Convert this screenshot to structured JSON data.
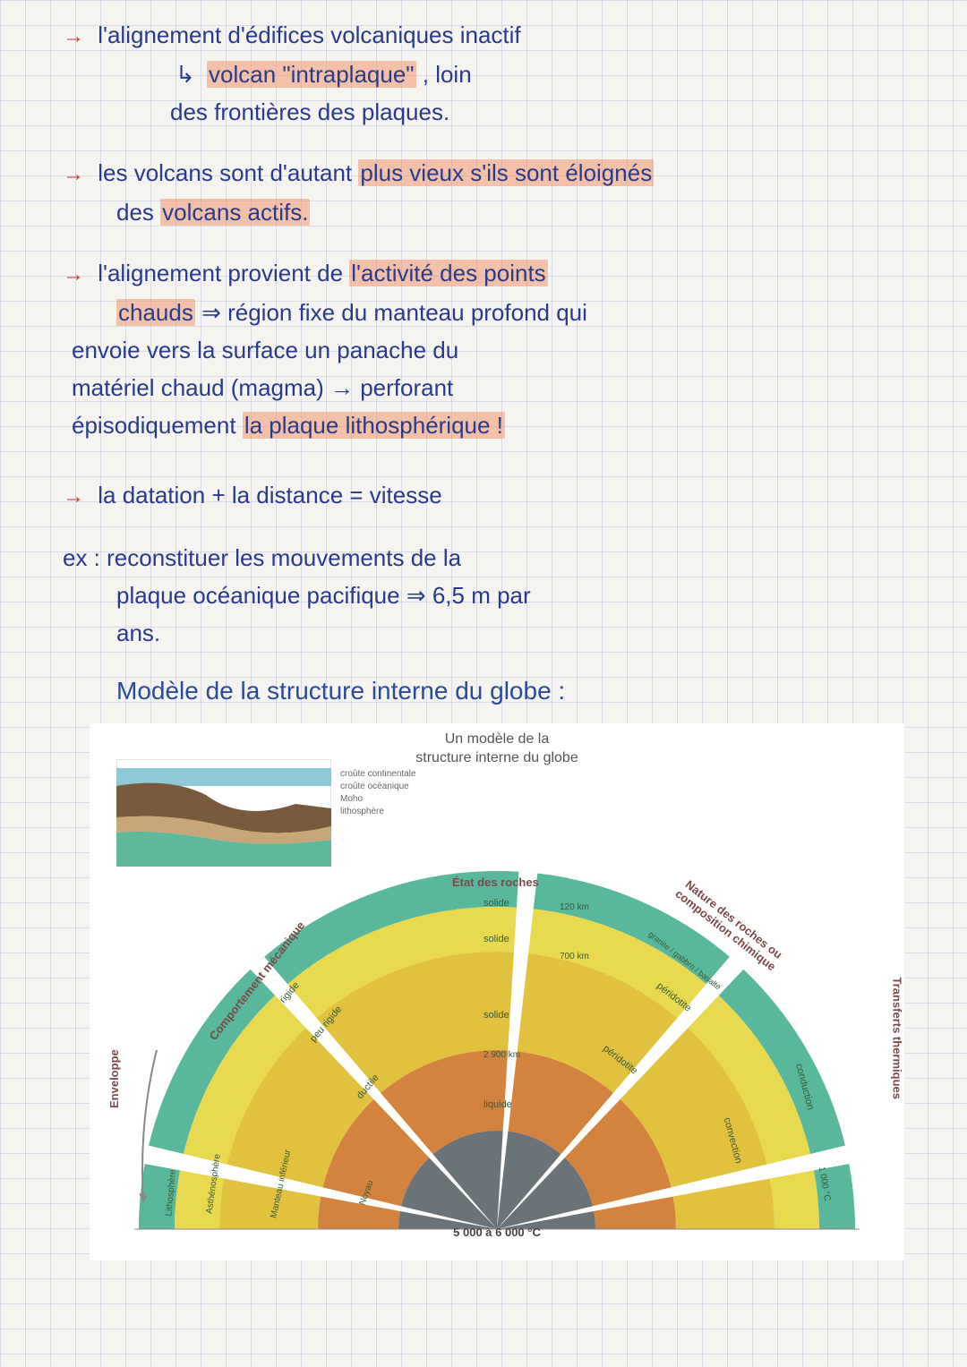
{
  "notes": {
    "line1a": "l'alignement d'édifices volcaniques inactif",
    "line1b_prefix": "↳ ",
    "line1b_hl": "volcan \"intraplaque\"",
    "line1b_suffix": ", loin",
    "line1c": "des frontières des plaques.",
    "line2a": "les volcans sont d'autant ",
    "line2a_hl": "plus vieux s'ils sont éloignés",
    "line2b": "des ",
    "line2b_hl": "volcans actifs.",
    "line3a": "l'alignement provient de ",
    "line3a_hl": "l'activité des points",
    "line3b_hl": "chauds",
    "line3b": " ⇒ région fixe du manteau profond qui",
    "line3c": "envoie vers la surface un panache du",
    "line3d": "matériel chaud (magma) → perforant",
    "line3e": "épisodiquement ",
    "line3e_hl": "la plaque lithosphérique !",
    "line4": "la datation + la distance = vitesse",
    "line5a": "ex : reconstituer les mouvements de la",
    "line5b": "plaque océanique pacifique ⇒ 6,5 m par",
    "line5c": "ans.",
    "section_title": "Modèle de la structure interne du globe :"
  },
  "colors": {
    "ink": "#2a3a8a",
    "arrow": "#c0392b",
    "highlight": "rgba(240,150,110,0.55)",
    "paper": "#f5f4f0",
    "grid": "rgba(150,160,200,0.3)"
  },
  "diagram": {
    "title_line1": "Un modèle de la",
    "title_line2": "structure interne du globe",
    "sector_headers": {
      "enveloppe": "Enveloppe",
      "comportement": "Comportement mécanique",
      "etat": "État des roches",
      "nature": "Nature des roches ou composition chimique",
      "transferts": "Transferts thermiques"
    },
    "rings": [
      {
        "name": "lithosphere-outer",
        "r_out": 400,
        "r_in": 360,
        "fill": "#59b89c"
      },
      {
        "name": "upper-mantle",
        "r_out": 360,
        "r_in": 310,
        "fill": "#e8d94f"
      },
      {
        "name": "lower-mantle",
        "r_out": 310,
        "r_in": 200,
        "fill": "#e1c23f"
      },
      {
        "name": "outer-core",
        "r_out": 200,
        "r_in": 110,
        "fill": "#d4833f"
      },
      {
        "name": "inner-core",
        "r_out": 110,
        "r_in": 0,
        "fill": "#6a7478"
      }
    ],
    "ring_labels": {
      "solide_top": "solide",
      "solide_mid": "solide",
      "liquide": "liquide",
      "rigide": "rigide",
      "peu_rigide": "peu rigide",
      "ductile": "ductile",
      "peridotite": "péridotite",
      "peridotite2": "péridotite",
      "conduction": "conduction",
      "convection": "convection",
      "granite": "granite / gabbro / basalte",
      "km120": "120 km",
      "km700": "700 km",
      "km2900": "2 900 km",
      "temp1000": "1 000 °C"
    },
    "enveloppe_labels": {
      "lithosphere": "Lithosphère",
      "asthenosphere": "Asthénosphère",
      "manteau_inf": "Manteau inférieur",
      "noyau": "Noyau"
    },
    "bottom_temp": "5 000 à 6 000 °C",
    "inset": {
      "label_croute_cont": "croûte continentale",
      "label_croute_oc": "croûte océanique",
      "label_moho": "Moho",
      "label_lithosphere": "lithosphère",
      "colors": {
        "ocean": "#8fc9d9",
        "crust_cont": "#7a5a3c",
        "crust_oc": "#c9a67a",
        "mantle": "#5fb89a"
      }
    }
  }
}
